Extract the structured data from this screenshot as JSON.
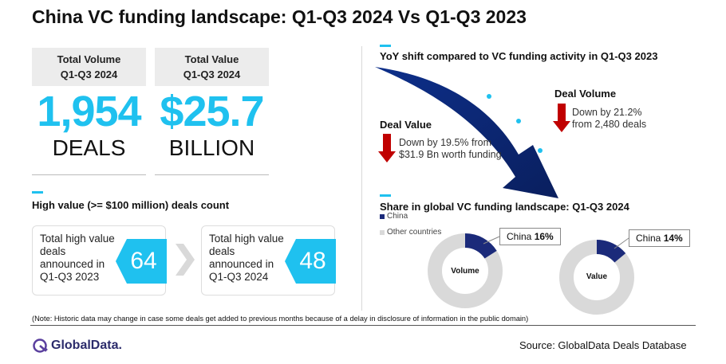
{
  "title": "China VC funding landscape: Q1-Q3 2024 Vs Q1-Q3 2023",
  "kpis": [
    {
      "label": "Total Volume",
      "period": "Q1-Q3 2024",
      "value": "1,954",
      "unit": "DEALS"
    },
    {
      "label": "Total Value",
      "period": "Q1-Q3 2024",
      "value": "$25.7",
      "unit": "BILLION"
    }
  ],
  "high_value": {
    "heading": "High value (>= $100 million) deals count",
    "cards": [
      {
        "text": "Total high value deals announced in Q1-Q3 2023",
        "count": "64"
      },
      {
        "text": "Total high value deals announced in Q1-Q3 2024",
        "count": "48"
      }
    ]
  },
  "yoy": {
    "heading": "YoY shift compared to VC funding activity in Q1-Q3 2023",
    "deal_value": {
      "title": "Deal Value",
      "text": "Down by 19.5% from $31.9 Bn worth funding"
    },
    "deal_volume": {
      "title": "Deal Volume",
      "text": "Down by 21.2% from 2,480 deals"
    }
  },
  "share": {
    "heading": "Share in global VC funding landscape: Q1-Q3 2024",
    "legend": [
      {
        "name": "China",
        "color": "#1b2a7a"
      },
      {
        "name": "Other countries",
        "color": "#d9d9d9"
      }
    ],
    "donuts": [
      {
        "label": "Volume",
        "callout_name": "China",
        "callout_value": "16%",
        "share": 0.16
      },
      {
        "label": "Value",
        "callout_name": "China",
        "callout_value": "14%",
        "share": 0.14
      }
    ]
  },
  "note": "(Note: Historic data may change in case some deals get added to previous months because of a delay in disclosure of information in the public domain)",
  "logo_text": "GlobalData.",
  "source": "Source: GlobalData Deals Database",
  "colors": {
    "accent": "#1fc1ef",
    "navy": "#1b2a7a",
    "red": "#c00000",
    "grey": "#d9d9d9"
  }
}
